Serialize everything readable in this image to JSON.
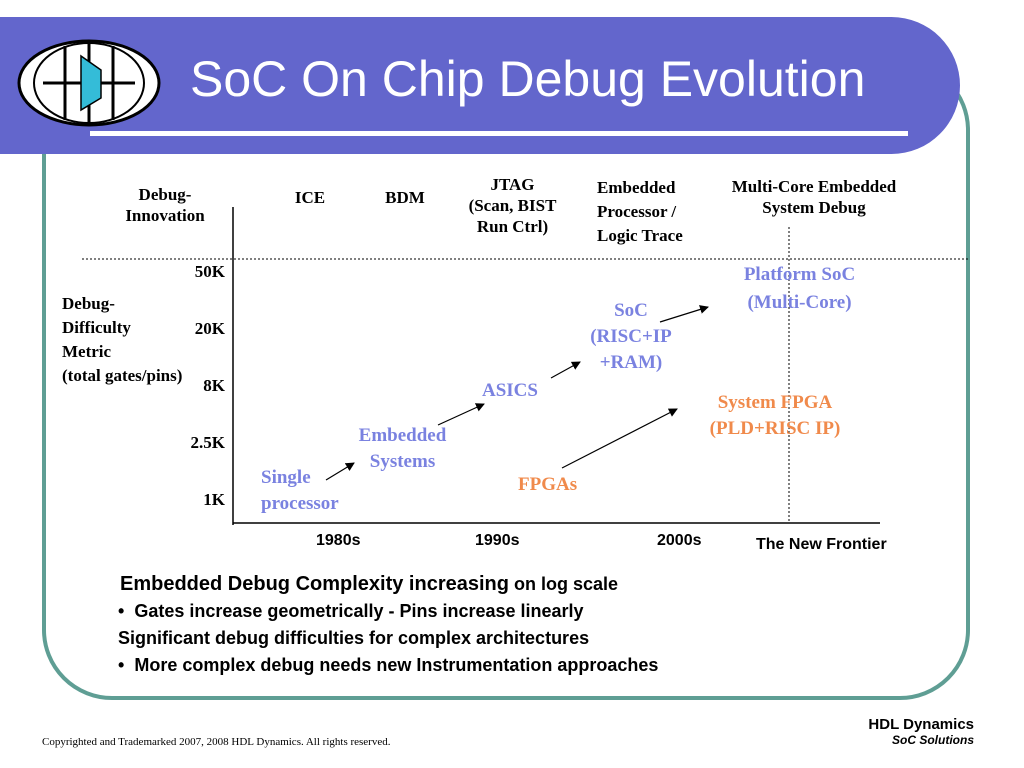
{
  "slide": {
    "title": "SoC On Chip Debug Evolution",
    "logo_icon": "hdl-dynamics-logo-icon"
  },
  "chart": {
    "row_label": [
      "Debug-",
      "Innovation"
    ],
    "col_headers": [
      [
        "ICE"
      ],
      [
        "BDM"
      ],
      [
        "JTAG",
        "(Scan, BIST",
        "Run Ctrl)"
      ],
      [
        "Embedded",
        "Processor /",
        "Logic Trace"
      ],
      [
        "Multi-Core Embedded",
        "System Debug"
      ]
    ],
    "y_axis_label": [
      "Debug-",
      "Difficulty",
      "Metric",
      "(total gates/pins)"
    ],
    "y_ticks": [
      "50K",
      "20K",
      "8K",
      "2.5K",
      "1K"
    ],
    "x_ticks": [
      "1980s",
      "1990s",
      "2000s"
    ],
    "frontier_label": "The New Frontier",
    "points": {
      "single": [
        "Single",
        "processor"
      ],
      "embedded": [
        "Embedded",
        "Systems"
      ],
      "asics": [
        "ASICS"
      ],
      "soc": [
        "SoC",
        "(RISC+IP",
        "+RAM)"
      ],
      "platform": [
        "Platform SoC",
        "(Multi-Core)"
      ],
      "fpgas": [
        "FPGAs"
      ],
      "sysfpga": [
        "System FPGA",
        "(PLD+RISC IP)"
      ]
    }
  },
  "bullets": {
    "line1_main": "Embedded Debug Complexity increasing",
    "line1_tail": " on log scale",
    "line2": "Gates increase geometrically - Pins increase linearly",
    "line3": "Significant debug difficulties for complex architectures",
    "line4": "More complex debug needs new Instrumentation approaches",
    "bullet_glyph": "•"
  },
  "footer": {
    "copyright": "Copyrighted and Trademarked 2007, 2008  HDL Dynamics. All rights reserved.",
    "brand": "HDL Dynamics",
    "tagline": "SoC Solutions"
  }
}
